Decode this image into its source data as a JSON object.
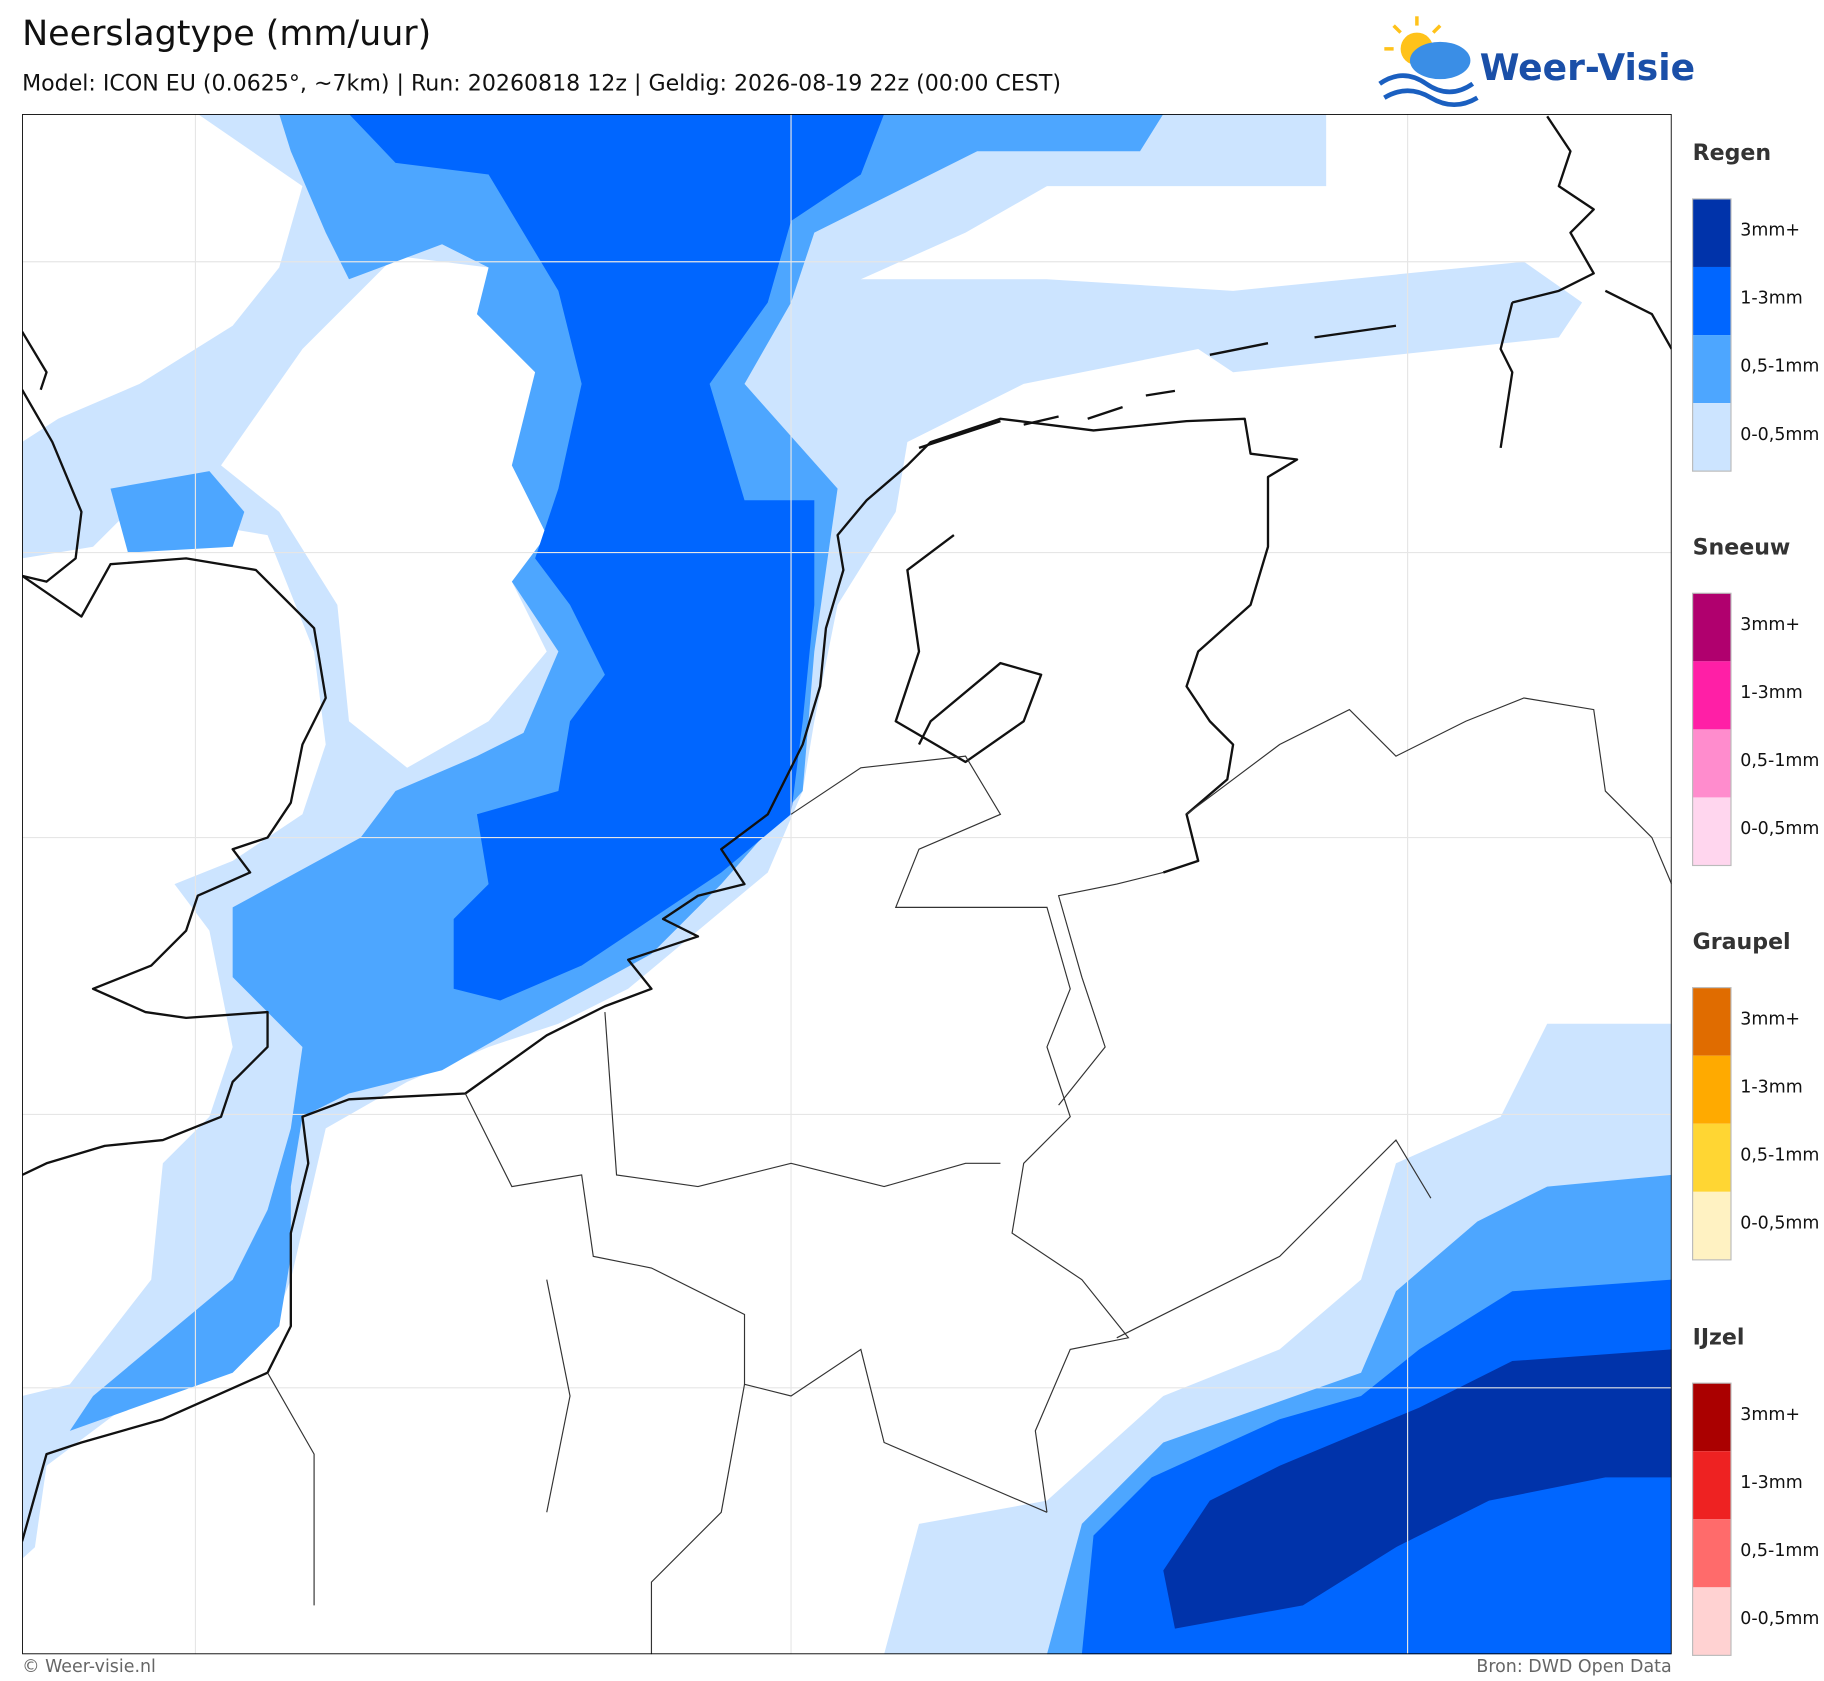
{
  "header": {
    "title": "Neerslagtype (mm/uur)",
    "subtitle": "Model: ICON EU (0.0625°, ~7km)  |  Run: 20260818 12z  |  Geldig: 2026-08-19 22z (00:00 CEST)",
    "logo": "Weer-Visie"
  },
  "legend": [
    {
      "title": "Regen",
      "labels": [
        "3mm+",
        "1-3mm",
        "0,5-1mm",
        "0-0,5mm"
      ],
      "colors": [
        "#0033aa",
        "#0066ff",
        "#4da6ff",
        "#cce4ff"
      ]
    },
    {
      "title": "Sneeuw",
      "labels": [
        "3mm+",
        "1-3mm",
        "0,5-1mm",
        "0-0,5mm"
      ],
      "colors": [
        "#b0006e",
        "#ff1fa6",
        "#ff8ccd",
        "#ffd6ee"
      ]
    },
    {
      "title": "Graupel",
      "labels": [
        "3mm+",
        "1-3mm",
        "0,5-1mm",
        "0-0,5mm"
      ],
      "colors": [
        "#e06c00",
        "#ffaa00",
        "#ffd633",
        "#fff2c2"
      ]
    },
    {
      "title": "IJzel",
      "labels": [
        "3mm+",
        "1-3mm",
        "0,5-1mm",
        "0-0,5mm"
      ],
      "colors": [
        "#aa0000",
        "#ee2222",
        "#ff6b6b",
        "#ffd2d2"
      ]
    }
  ],
  "footer": {
    "left": "© Weer-visie.nl",
    "right": "Bron: DWD Open Data"
  }
}
